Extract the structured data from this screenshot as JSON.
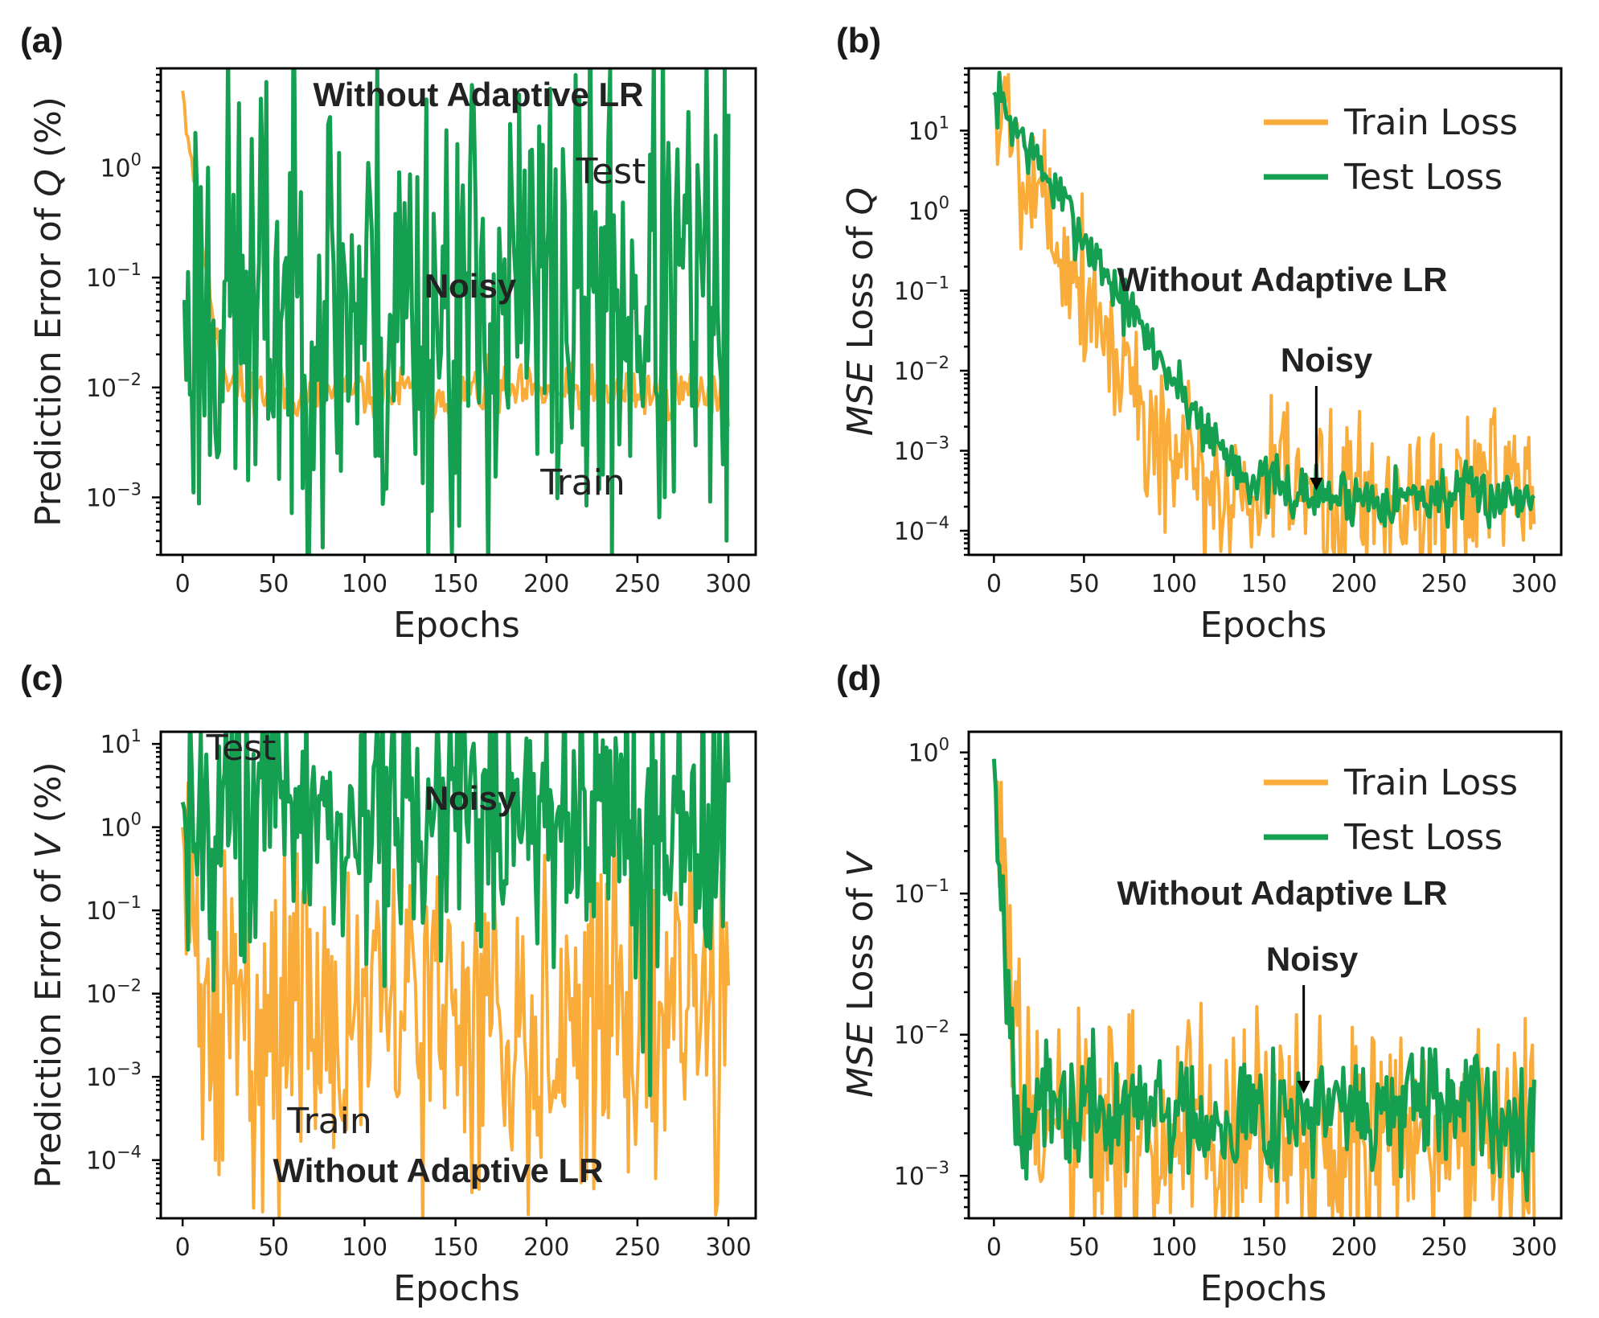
{
  "colors": {
    "train": "#f9ac3a",
    "test": "#14a050",
    "axis": "#000000"
  },
  "chart_data": [
    {
      "id": "a",
      "panel_label": "(a)",
      "type": "line",
      "yscale": "log",
      "xlim": [
        -12,
        315
      ],
      "ylim": [
        0.0003,
        8
      ],
      "xticks": [
        0,
        50,
        100,
        150,
        200,
        250,
        300
      ],
      "yticks": [
        {
          "v": 0.001,
          "base": "10",
          "exp": "−3"
        },
        {
          "v": 0.01,
          "base": "10",
          "exp": "−2"
        },
        {
          "v": 0.1,
          "base": "10",
          "exp": "−1"
        },
        {
          "v": 1,
          "base": "10",
          "exp": "0"
        }
      ],
      "xlabel": "Epochs",
      "ylabel_parts": [
        "Prediction Error of ",
        "Q",
        " (%)"
      ],
      "annotations": {
        "method": "Without Adaptive LR",
        "test": "Test",
        "noisy": "Noisy",
        "train": "Train"
      },
      "series": [
        {
          "name": "Train",
          "color_key": "train",
          "start": 5.0,
          "end": 0.009,
          "decay": 3.5,
          "spread": 0.12,
          "seed": 11,
          "width": 4
        },
        {
          "name": "Test",
          "color_key": "test",
          "start": 0.06,
          "end": 0.06,
          "decay": 1,
          "spread": 1.1,
          "seed": 23,
          "dips": [
            [
              40,
              0.002
            ],
            [
              72,
              0.0018
            ],
            [
              112,
              0.0012
            ],
            [
              152,
              0.00055
            ],
            [
              220,
              0.003
            ],
            [
              297,
              0.002
            ]
          ],
          "width": 5
        }
      ]
    },
    {
      "id": "b",
      "panel_label": "(b)",
      "type": "line",
      "yscale": "log",
      "xlim": [
        -14,
        315
      ],
      "ylim": [
        5e-05,
        60
      ],
      "xticks": [
        0,
        50,
        100,
        150,
        200,
        250,
        300
      ],
      "yticks": [
        {
          "v": 0.0001,
          "base": "10",
          "exp": "−4"
        },
        {
          "v": 0.001,
          "base": "10",
          "exp": "−3"
        },
        {
          "v": 0.01,
          "base": "10",
          "exp": "−2"
        },
        {
          "v": 0.1,
          "base": "10",
          "exp": "−1"
        },
        {
          "v": 1,
          "base": "10",
          "exp": "0"
        },
        {
          "v": 10,
          "base": "10",
          "exp": "1"
        }
      ],
      "xlabel": "Epochs",
      "ylabel_parts": [
        "MSE",
        " Loss of ",
        "Q"
      ],
      "legend": [
        "Train Loss",
        "Test Loss"
      ],
      "annotations": {
        "method": "Without Adaptive LR",
        "noisy": "Noisy",
        "arrow_x": 179
      },
      "series": [
        {
          "name": "Train Loss",
          "color_key": "train",
          "start": 30,
          "end": 0.00028,
          "decay": 9,
          "spread": 0.55,
          "seed": 5,
          "width": 4
        },
        {
          "name": "Test Loss",
          "color_key": "test",
          "start": 30,
          "end": 0.00027,
          "decay": 12,
          "spread": 0.18,
          "seed": 7,
          "spikes": [
            [
              155,
              0.0007
            ],
            [
              130,
              0.0005
            ]
          ],
          "width": 5
        }
      ]
    },
    {
      "id": "c",
      "panel_label": "(c)",
      "type": "line",
      "yscale": "log",
      "xlim": [
        -12,
        315
      ],
      "ylim": [
        2e-05,
        14
      ],
      "xticks": [
        0,
        50,
        100,
        150,
        200,
        250,
        300
      ],
      "yticks": [
        {
          "v": 0.0001,
          "base": "10",
          "exp": "−4"
        },
        {
          "v": 0.001,
          "base": "10",
          "exp": "−3"
        },
        {
          "v": 0.01,
          "base": "10",
          "exp": "−2"
        },
        {
          "v": 0.1,
          "base": "10",
          "exp": "−1"
        },
        {
          "v": 1,
          "base": "10",
          "exp": "0"
        },
        {
          "v": 10,
          "base": "10",
          "exp": "1"
        }
      ],
      "xlabel": "Epochs",
      "ylabel_parts": [
        "Prediction Error of ",
        "V",
        " (%)"
      ],
      "annotations": {
        "method": "Without Adaptive LR",
        "test": "Test",
        "noisy": "Noisy",
        "train": "Train"
      },
      "series": [
        {
          "name": "Train",
          "color_key": "train",
          "start": 1.0,
          "end": 0.006,
          "decay": 1.5,
          "spread": 1.0,
          "seed": 31,
          "dips": [
            [
              18,
              0.0001
            ],
            [
              22,
              0.0001
            ],
            [
              37,
              0.0003
            ],
            [
              88,
              0.0003
            ],
            [
              195,
              0.0002
            ],
            [
              260,
              6e-05
            ],
            [
              294,
              3e-05
            ]
          ],
          "width": 4
        },
        {
          "name": "Test",
          "color_key": "test",
          "start": 2.0,
          "end": 1.4,
          "decay": 1,
          "spread": 0.85,
          "seed": 43,
          "dips": [
            [
              88,
              0.05
            ],
            [
              127,
              0.08
            ],
            [
              176,
              0.12
            ],
            [
              195,
              0.04
            ],
            [
              253,
              0.002
            ],
            [
              257,
              0.0006
            ]
          ],
          "width": 5
        }
      ]
    },
    {
      "id": "d",
      "panel_label": "(d)",
      "type": "line",
      "yscale": "log",
      "xlim": [
        -14,
        315
      ],
      "ylim": [
        0.0005,
        1.4
      ],
      "xticks": [
        0,
        50,
        100,
        150,
        200,
        250,
        300
      ],
      "yticks": [
        {
          "v": 0.001,
          "base": "10",
          "exp": "−3"
        },
        {
          "v": 0.01,
          "base": "10",
          "exp": "−2"
        },
        {
          "v": 0.1,
          "base": "10",
          "exp": "−1"
        },
        {
          "v": 1,
          "base": "10",
          "exp": "0"
        }
      ],
      "xlabel": "Epochs",
      "ylabel_parts": [
        "MSE",
        " Loss of ",
        "V"
      ],
      "legend": [
        "Train Loss",
        "Test Loss"
      ],
      "annotations": {
        "method": "Without Adaptive LR",
        "noisy": "Noisy",
        "arrow_x": 172
      },
      "series": [
        {
          "name": "Train Loss",
          "color_key": "train",
          "start": 0.9,
          "end": 0.0018,
          "decay": 2.5,
          "spread": 0.45,
          "seed": 61,
          "width": 4
        },
        {
          "name": "Test Loss",
          "color_key": "test",
          "start": 0.9,
          "end": 0.0028,
          "decay": 2.0,
          "spread": 0.22,
          "seed": 67,
          "spikes": [
            [
              92,
              0.0065
            ],
            [
              155,
              0.008
            ],
            [
              300,
              0.0048
            ]
          ],
          "width": 5
        }
      ]
    }
  ]
}
